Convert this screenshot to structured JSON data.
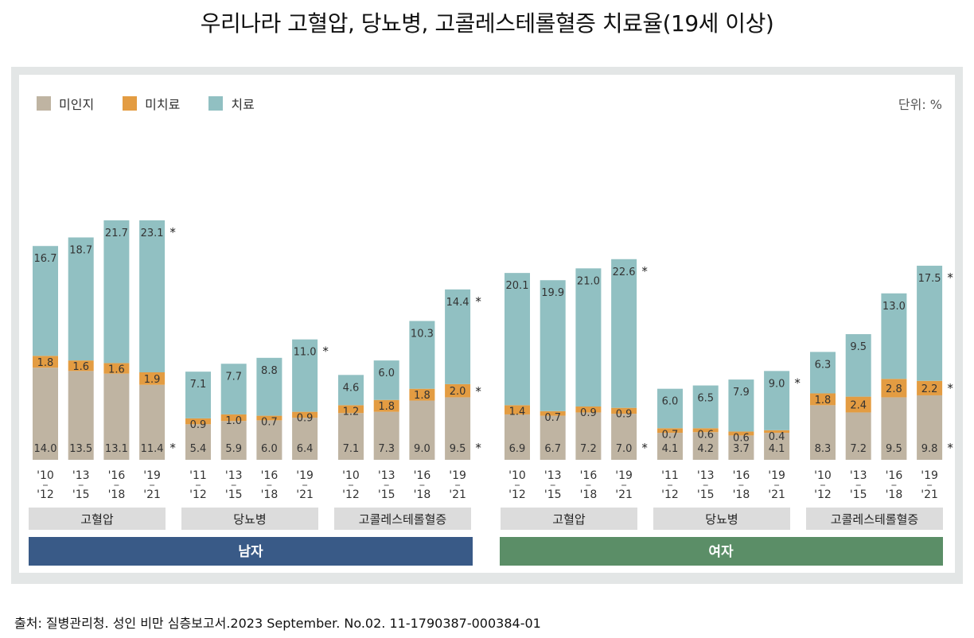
{
  "title": "우리나라 고혈압, 당뇨병, 고콜레스테롤혈증 치료율(19세 이상)",
  "unit_label": "단위: %",
  "source": "출처: 질병관리청. 성인 비만 심층보고서.2023 September. No.02. 11-1790387-000384-01",
  "colors": {
    "unaware": "#bfb4a2",
    "untreated": "#e39c42",
    "treated": "#91c0c2",
    "male": "#395a87",
    "female": "#5b8e67",
    "group_label_bg": "#dcdcdc",
    "frame": "#e3e6e6"
  },
  "chart_data": {
    "type": "bar",
    "stacked": true,
    "legend": [
      "미인지",
      "미치료",
      "치료"
    ],
    "legend_placement": "top-left",
    "groups": [
      {
        "sex": "남자",
        "disease": "고혈압",
        "periods": [
          [
            "'10",
            "'12"
          ],
          [
            "'13",
            "'15"
          ],
          [
            "'16",
            "'18"
          ],
          [
            "'19",
            "'21"
          ]
        ],
        "unaware": [
          14.0,
          13.5,
          13.1,
          11.4
        ],
        "untreated": [
          1.8,
          1.6,
          1.6,
          1.9
        ],
        "treated": [
          16.7,
          18.7,
          21.7,
          23.1
        ],
        "stars": {
          "unaware": true,
          "untreated": false,
          "treated": true
        }
      },
      {
        "sex": "남자",
        "disease": "당뇨병",
        "periods": [
          [
            "'11",
            "'12"
          ],
          [
            "'13",
            "'15"
          ],
          [
            "'16",
            "'18"
          ],
          [
            "'19",
            "'21"
          ]
        ],
        "unaware": [
          5.4,
          5.9,
          6.0,
          6.4
        ],
        "untreated": [
          0.9,
          1.0,
          0.7,
          0.9
        ],
        "treated": [
          7.1,
          7.7,
          8.8,
          11.0
        ],
        "stars": {
          "unaware": false,
          "untreated": false,
          "treated": true
        }
      },
      {
        "sex": "남자",
        "disease": "고콜레스테롤혈증",
        "periods": [
          [
            "'10",
            "'12"
          ],
          [
            "'13",
            "'15"
          ],
          [
            "'16",
            "'18"
          ],
          [
            "'19",
            "'21"
          ]
        ],
        "unaware": [
          7.1,
          7.3,
          9.0,
          9.5
        ],
        "untreated": [
          1.2,
          1.8,
          1.8,
          2.0
        ],
        "treated": [
          4.6,
          6.0,
          10.3,
          14.4
        ],
        "stars": {
          "unaware": true,
          "untreated": true,
          "treated": true
        }
      },
      {
        "sex": "여자",
        "disease": "고혈압",
        "periods": [
          [
            "'10",
            "'12"
          ],
          [
            "'13",
            "'15"
          ],
          [
            "'16",
            "'18"
          ],
          [
            "'19",
            "'21"
          ]
        ],
        "unaware": [
          6.9,
          6.7,
          7.2,
          7.0
        ],
        "untreated": [
          1.4,
          0.7,
          0.9,
          0.9
        ],
        "treated": [
          20.1,
          19.9,
          21.0,
          22.6
        ],
        "stars": {
          "unaware": true,
          "untreated": false,
          "treated": true
        }
      },
      {
        "sex": "여자",
        "disease": "당뇨병",
        "periods": [
          [
            "'11",
            "'12"
          ],
          [
            "'13",
            "'15"
          ],
          [
            "'16",
            "'18"
          ],
          [
            "'19",
            "'21"
          ]
        ],
        "unaware": [
          4.1,
          4.2,
          3.7,
          4.1
        ],
        "untreated": [
          0.7,
          0.6,
          0.6,
          0.4
        ],
        "treated": [
          6.0,
          6.5,
          7.9,
          9.0
        ],
        "stars": {
          "unaware": false,
          "untreated": false,
          "treated": true
        }
      },
      {
        "sex": "여자",
        "disease": "고콜레스테롤혈증",
        "periods": [
          [
            "'10",
            "'12"
          ],
          [
            "'13",
            "'15"
          ],
          [
            "'16",
            "'18"
          ],
          [
            "'19",
            "'21"
          ]
        ],
        "unaware": [
          8.3,
          7.2,
          9.5,
          9.8
        ],
        "untreated": [
          1.8,
          2.4,
          2.8,
          2.2
        ],
        "treated": [
          6.3,
          9.5,
          13.0,
          17.5
        ],
        "stars": {
          "unaware": true,
          "untreated": true,
          "treated": true
        }
      }
    ],
    "sexes": [
      "남자",
      "여자"
    ],
    "star_mark": "*"
  }
}
